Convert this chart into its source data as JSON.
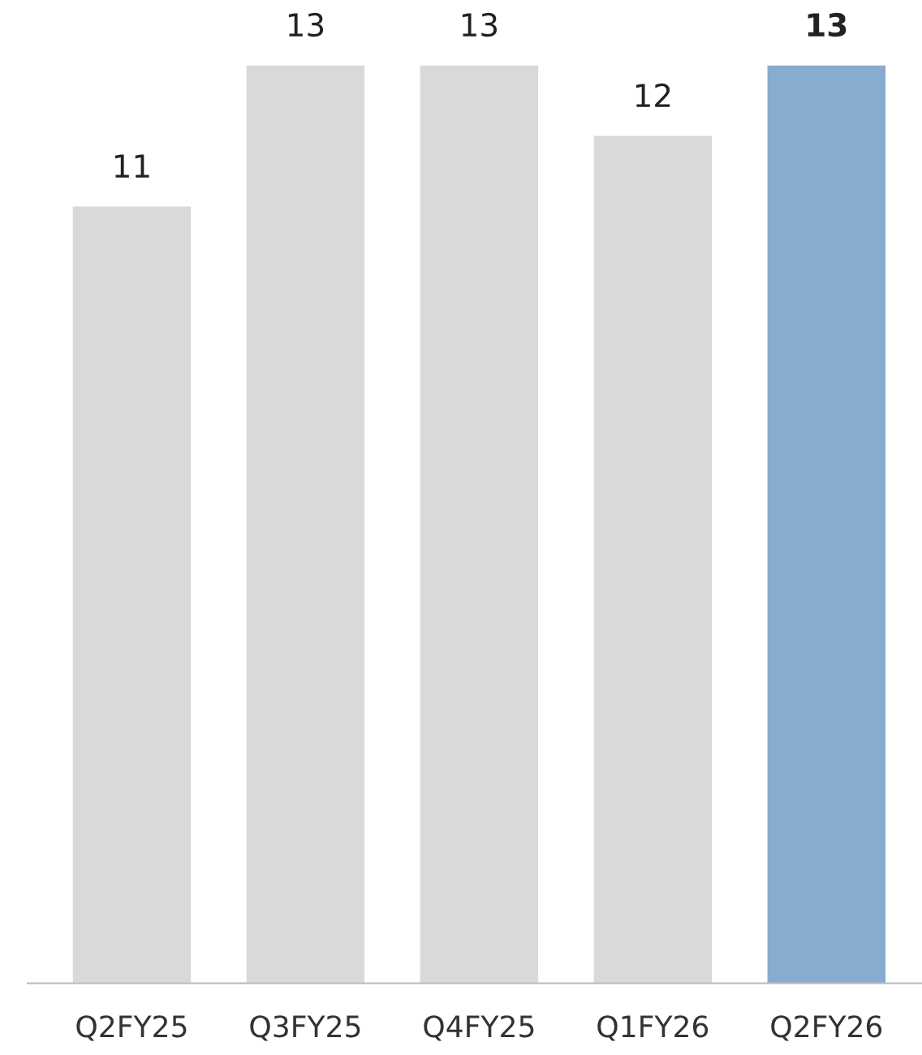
{
  "chart_data": {
    "type": "bar",
    "categories": [
      "Q2FY25",
      "Q3FY25",
      "Q4FY25",
      "Q1FY26",
      "Q2FY26"
    ],
    "values": [
      11,
      13,
      13,
      12,
      13
    ],
    "colors": [
      "#d9d9d9",
      "#d9d9d9",
      "#d9d9d9",
      "#d9d9d9",
      "#88abd0"
    ],
    "data_labels": true,
    "grid": false,
    "legend": false
  }
}
